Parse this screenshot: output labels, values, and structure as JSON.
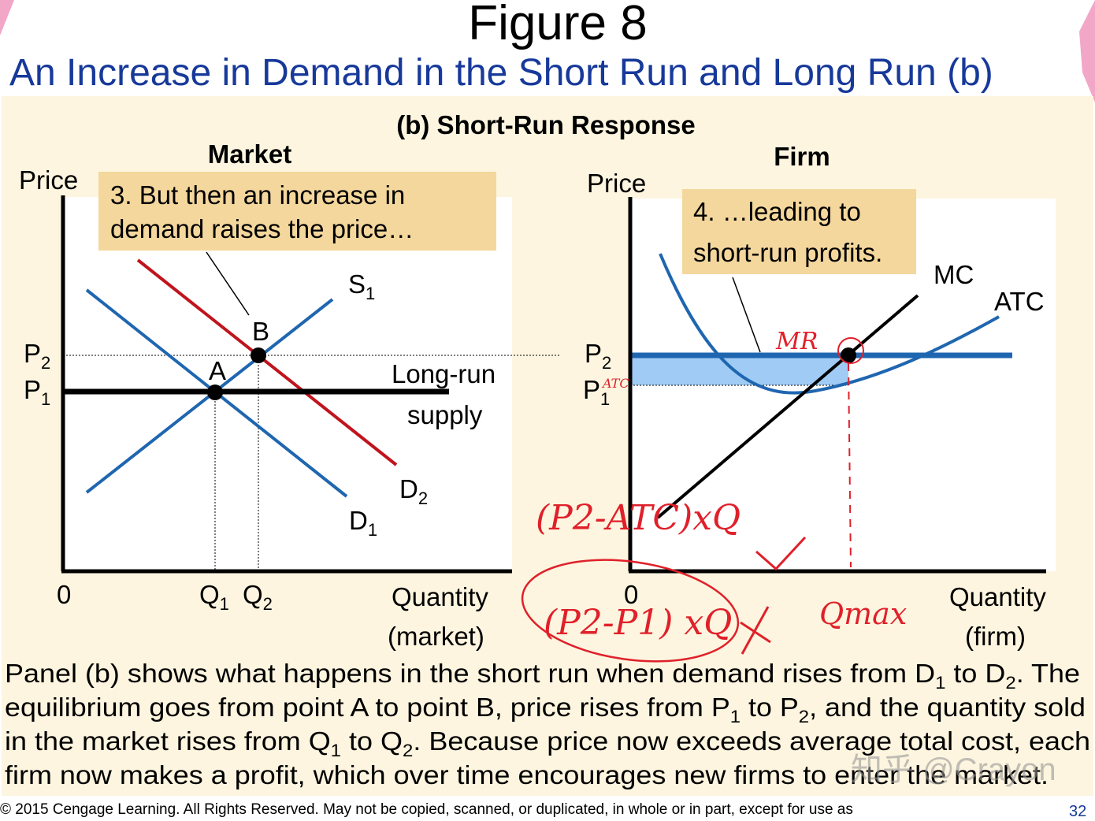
{
  "header": {
    "title": "Figure 8",
    "subtitle": "An Increase in Demand in the Short Run and Long Run (b)"
  },
  "panel_title": "(b) Short-Run Response",
  "market": {
    "heading": "Market",
    "y_axis_label": "Price",
    "callout": [
      "3. But then an increase in",
      "demand raises the price…"
    ],
    "supply_label": {
      "base": "S",
      "sub": "1"
    },
    "demand1_label": {
      "base": "D",
      "sub": "1"
    },
    "demand2_label": {
      "base": "D",
      "sub": "2"
    },
    "point_a": "A",
    "point_b": "B",
    "p2_label": {
      "base": "P",
      "sub": "2"
    },
    "p1_label": {
      "base": "P",
      "sub": "1"
    },
    "long_run_supply": [
      "Long-run",
      "supply"
    ],
    "origin": "0",
    "q1_label": {
      "base": "Q",
      "sub": "1"
    },
    "q2_label": {
      "base": "Q",
      "sub": "2"
    },
    "x_axis_label": [
      "Quantity",
      "(market)"
    ]
  },
  "firm": {
    "heading": "Firm",
    "y_axis_label": "Price",
    "callout": [
      "4. …leading to",
      "short-run profits."
    ],
    "mc_label": "MC",
    "atc_label": "ATC",
    "p2_label": {
      "base": "P",
      "sub": "2"
    },
    "p1_label": {
      "base": "P",
      "sub": "1"
    },
    "origin": "0",
    "x_axis_label": [
      "Quantity",
      "(firm)"
    ]
  },
  "annotations": {
    "mr": "MR",
    "atc": "ATC",
    "profit_formula_1": "(P2-ATC)xQ",
    "profit_formula_2": "(P2-P1) xQ",
    "qmax": "Qmax"
  },
  "caption": [
    [
      "Panel (b) shows what happens in the short run when demand rises from D",
      "1",
      " to D",
      "2",
      ". The"
    ],
    [
      "equilibrium goes from point A to point B, price rises from P",
      "1",
      " to P",
      "2",
      ", and the quantity sold"
    ],
    [
      "in the market rises from Q",
      "1",
      " to Q",
      "2",
      ". Because price now exceeds average total cost, each"
    ],
    [
      "firm now makes a profit, which over time encourages new firms to enter the market."
    ]
  ],
  "footer": {
    "copyright": "© 2015 Cengage Learning. All Rights Reserved. May not be copied, scanned, or duplicated, in whole or in part, except for use as",
    "page": "32"
  },
  "watermark": "知乎 @Crayon"
}
